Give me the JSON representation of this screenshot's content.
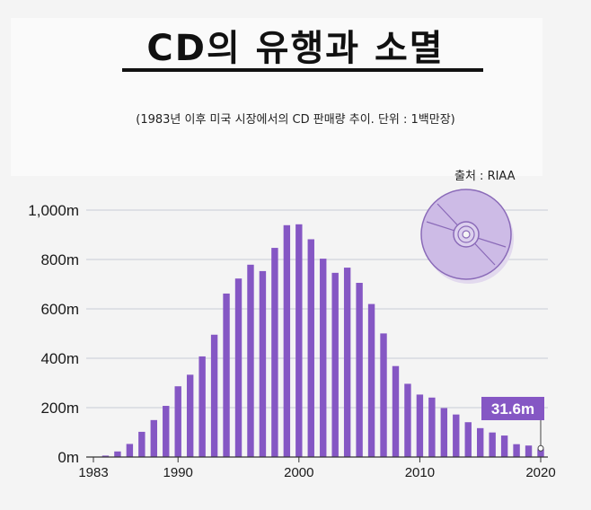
{
  "header": {
    "title": "CD의 유행과 소멸",
    "subtitle": "(1983년 이후 미국 시장에서의 CD 판매량 추이.  단위 :  1백만장)",
    "source": "출처 :  RIAA"
  },
  "colors": {
    "bar": "#8557c4",
    "grid": "#c9cbd6",
    "axis": "#333333",
    "annotation_bg": "#8557c4",
    "disc_fill": "#cdbbe6",
    "disc_stroke": "#8a6ab8"
  },
  "chart_data": {
    "type": "bar",
    "x": [
      1983,
      1984,
      1985,
      1986,
      1987,
      1988,
      1989,
      1990,
      1991,
      1992,
      1993,
      1994,
      1995,
      1996,
      1997,
      1998,
      1999,
      2000,
      2001,
      2002,
      2003,
      2004,
      2005,
      2006,
      2007,
      2008,
      2009,
      2010,
      2011,
      2012,
      2013,
      2014,
      2015,
      2016,
      2017,
      2018,
      2019,
      2020
    ],
    "values": [
      0.8,
      5.8,
      22.6,
      53,
      102.1,
      149.7,
      207.2,
      286.5,
      333.3,
      407.5,
      495.4,
      662.1,
      722.9,
      778.9,
      753.1,
      847,
      938.9,
      942.5,
      881.9,
      803.3,
      746,
      767,
      705.4,
      619.7,
      500.5,
      368.4,
      296.6,
      253,
      240.8,
      198.2,
      172.2,
      141,
      117,
      99.4,
      87,
      52,
      46.5,
      31.6
    ],
    "x_tick_labels": [
      "1983",
      "1990",
      "2000",
      "2010",
      "2020"
    ],
    "y_tick_labels": [
      "0m",
      "200m",
      "400m",
      "600m",
      "800m",
      "1,000m"
    ],
    "y_ticks": [
      0,
      200,
      400,
      600,
      800,
      1000
    ],
    "ylim": [
      0,
      1000
    ],
    "grid": true,
    "annotation": {
      "x": 2020,
      "value": 31.6,
      "label": "31.6m"
    }
  }
}
